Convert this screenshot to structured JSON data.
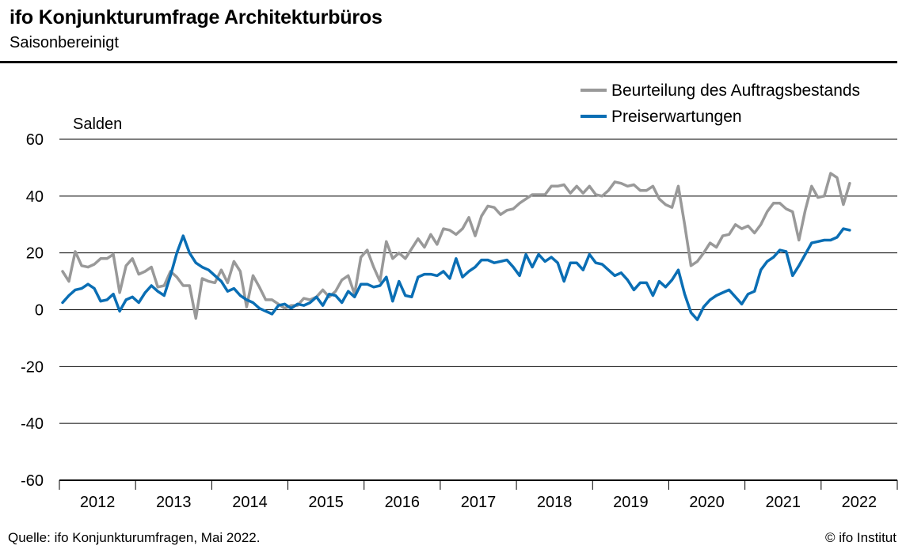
{
  "header": {
    "title": "ifo Konjunkturumfrage Architekturbüros",
    "subtitle": "Saisonbereinigt"
  },
  "footer": {
    "source": "Quelle: ifo Konjunkturumfragen, Mai 2022.",
    "copyright": "© ifo Institut"
  },
  "chart_data": {
    "type": "line",
    "ylabel": "Salden",
    "ylim": [
      -60,
      60
    ],
    "yticks": [
      60,
      40,
      20,
      0,
      -20,
      -40,
      -60
    ],
    "x_start": "2012-01",
    "x_end": "2022-05",
    "year_labels": [
      "2012",
      "2013",
      "2014",
      "2015",
      "2016",
      "2017",
      "2018",
      "2019",
      "2020",
      "2021",
      "2022"
    ],
    "grid": true,
    "legend_position": "top-right",
    "series": [
      {
        "name": "Beurteilung des Auftragsbestands",
        "color": "#999999",
        "values": [
          13.5,
          10,
          20.5,
          15.5,
          15,
          16,
          18,
          18,
          19.5,
          6,
          15.5,
          18,
          12.5,
          13.5,
          15,
          8,
          8.5,
          13.5,
          11.5,
          8.5,
          8.5,
          -3,
          11,
          10,
          9.5,
          14,
          9.5,
          17,
          13.5,
          1,
          12,
          8,
          3.5,
          3.5,
          2,
          0.5,
          1.5,
          1.5,
          4,
          3.5,
          4.5,
          7,
          4.5,
          6.5,
          10.5,
          12,
          5.5,
          18.5,
          21,
          15,
          10,
          24,
          18,
          20,
          18,
          21.5,
          25,
          22,
          26.5,
          23,
          28.5,
          28,
          26.5,
          28.5,
          32.5,
          26,
          33,
          36.5,
          36,
          33.5,
          35,
          35.5,
          37.5,
          39,
          40.5,
          40.5,
          40.5,
          43.5,
          43.5,
          44,
          41,
          43.5,
          41,
          43.5,
          40.5,
          40,
          42,
          45,
          44.5,
          43.5,
          44,
          42,
          42,
          43.5,
          39,
          37,
          36,
          43.5,
          30,
          15.5,
          17,
          20,
          23.5,
          22,
          26,
          26.5,
          30,
          28.5,
          29.5,
          27,
          30,
          34.5,
          37.5,
          37.5,
          35.5,
          34.5,
          24.5,
          35,
          43.5,
          39.5,
          40,
          48,
          46.5,
          37,
          44.5
        ]
      },
      {
        "name": "Preiserwartungen",
        "color": "#0a6eb4",
        "values": [
          2.5,
          5,
          7,
          7.5,
          9,
          7.5,
          3,
          3.5,
          5.5,
          -0.5,
          3.5,
          4.5,
          2.5,
          6,
          8.5,
          6.5,
          5,
          12,
          20,
          26,
          20,
          16.5,
          15,
          14,
          12,
          10,
          6.5,
          7.5,
          5,
          3.5,
          2.5,
          0.5,
          -0.5,
          -1.5,
          1.5,
          2,
          0.5,
          2,
          1.5,
          2.5,
          4.5,
          1.5,
          5.5,
          5,
          2.5,
          6.5,
          4.5,
          9,
          9,
          8,
          8.5,
          11.5,
          3,
          10,
          5,
          4.5,
          11.5,
          12.5,
          12.5,
          12,
          13.5,
          11,
          18,
          11.5,
          13.5,
          15,
          17.5,
          17.5,
          16.5,
          17,
          17.5,
          15,
          12,
          19.5,
          15,
          19.5,
          17,
          18.5,
          16.5,
          10,
          16.5,
          16.5,
          14,
          19.5,
          16.5,
          16,
          14,
          12,
          13,
          10.5,
          7,
          9.5,
          9.5,
          5,
          10,
          8,
          10.5,
          14,
          5.5,
          -1,
          -3.5,
          1,
          3.5,
          5,
          6,
          7,
          4.5,
          2,
          5.5,
          6.5,
          14,
          17,
          18.5,
          21,
          20.5,
          12,
          15.5,
          19.5,
          23.5,
          24,
          24.5,
          24.5,
          25.5,
          28.5,
          28
        ]
      }
    ]
  }
}
